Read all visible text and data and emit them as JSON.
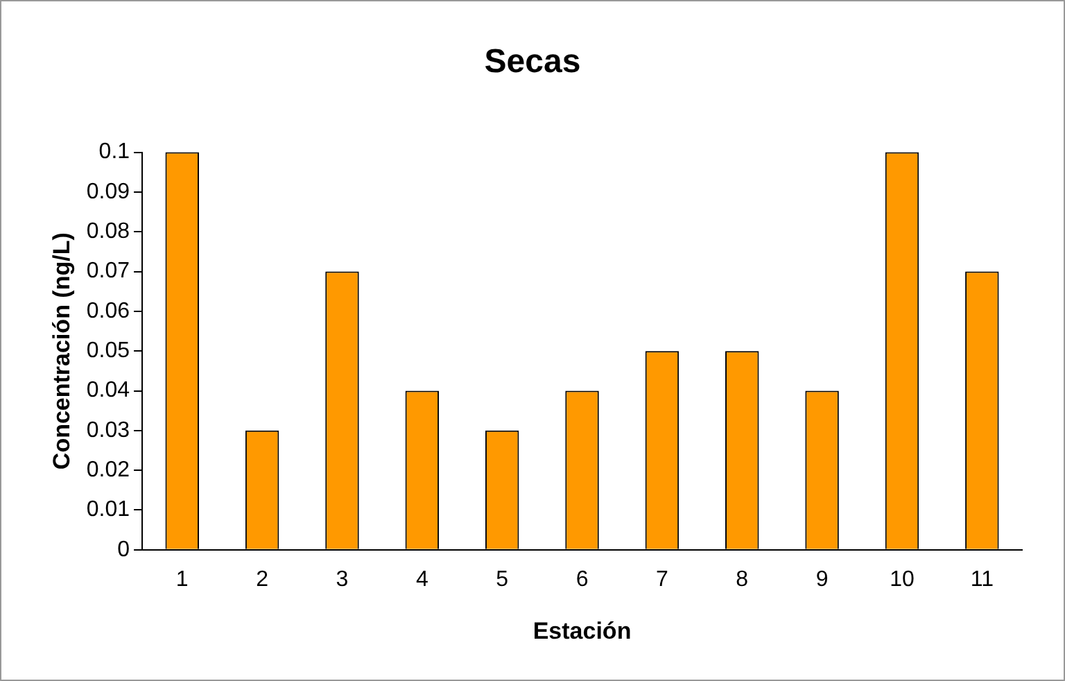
{
  "chart_data": {
    "type": "bar",
    "title": "Secas",
    "xlabel": "Estación",
    "ylabel": "Concentración (ng/L)",
    "categories": [
      "1",
      "2",
      "3",
      "4",
      "5",
      "6",
      "7",
      "8",
      "9",
      "10",
      "11"
    ],
    "values": [
      0.1,
      0.03,
      0.07,
      0.04,
      0.03,
      0.04,
      0.05,
      0.05,
      0.04,
      0.1,
      0.07
    ],
    "color": "#ff9900",
    "ylim": [
      0,
      0.1
    ],
    "yticks": [
      0,
      0.01,
      0.02,
      0.03,
      0.04,
      0.05,
      0.06,
      0.07,
      0.08,
      0.09,
      0.1
    ],
    "grid": false,
    "legend": false
  }
}
